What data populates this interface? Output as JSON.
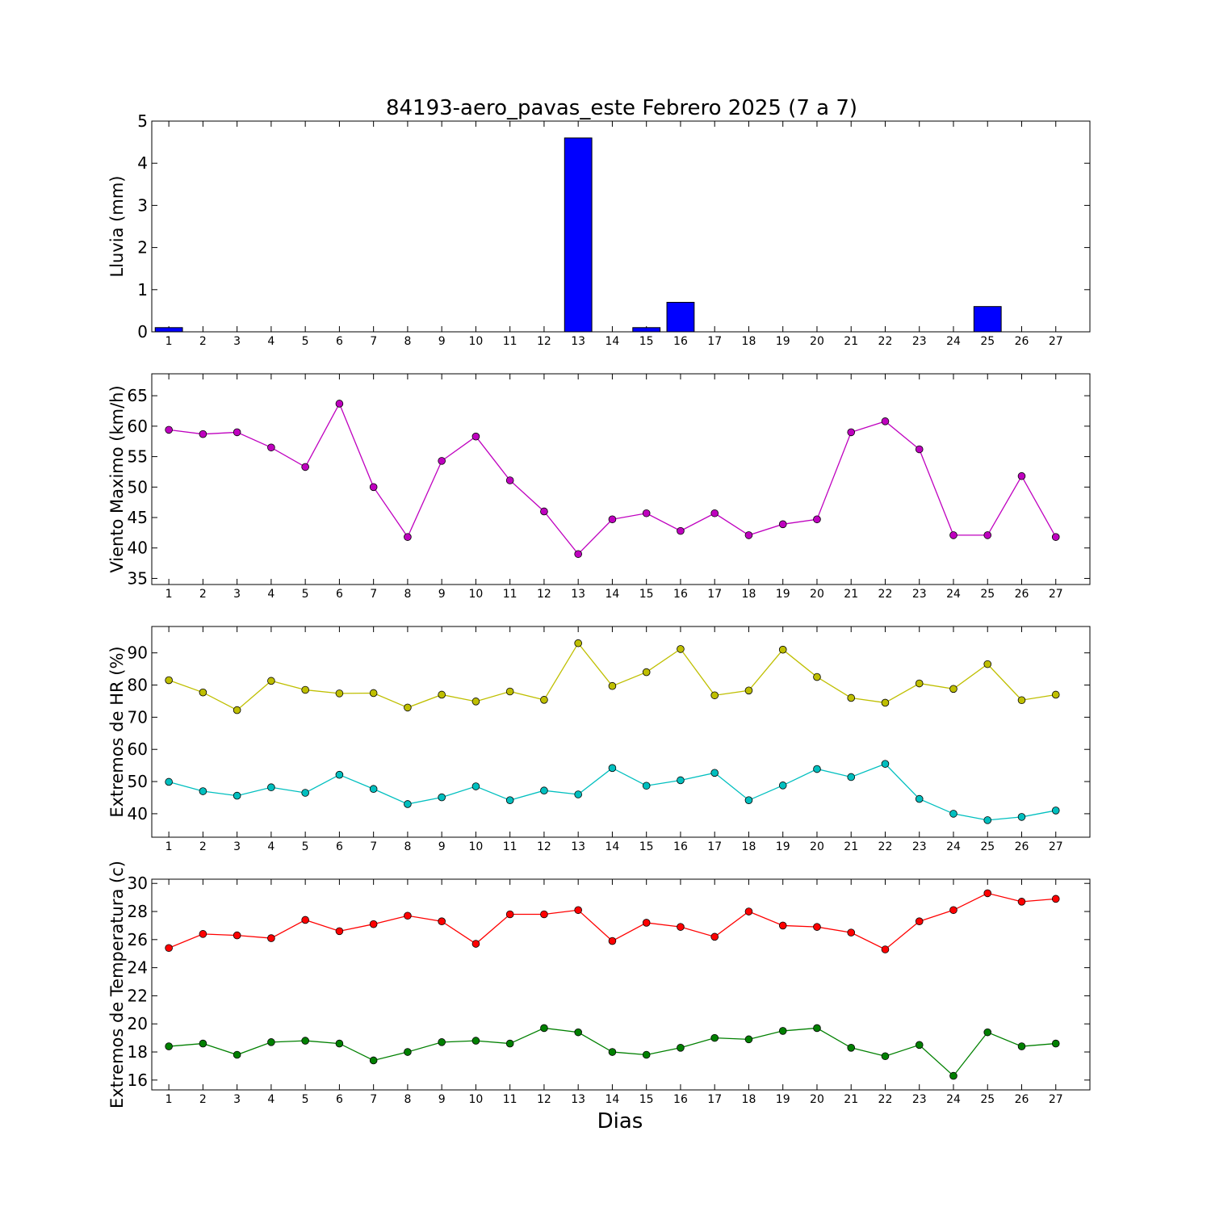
{
  "title": "84193-aero_pavas_este Febrero 2025  (7 a 7)",
  "xlabel": "Dias",
  "colors": {
    "lluvia_bar": "#0000ff",
    "viento": "#bf00bf",
    "hr_max": "#bfbf00",
    "hr_min": "#00bfbf",
    "temp_max": "#ff0000",
    "temp_min": "#008000"
  },
  "chart_data": [
    {
      "type": "bar",
      "ylabel": "Lluvia (mm)",
      "categories": [
        "1",
        "2",
        "3",
        "4",
        "5",
        "6",
        "7",
        "8",
        "9",
        "10",
        "11",
        "12",
        "13",
        "14",
        "15",
        "16",
        "17",
        "18",
        "19",
        "20",
        "21",
        "22",
        "23",
        "24",
        "25",
        "26",
        "27"
      ],
      "ylim": [
        0,
        5
      ],
      "yticks": [
        0,
        1,
        2,
        3,
        4,
        5
      ],
      "grid": false,
      "series": [
        {
          "color": "#0000ff",
          "values": [
            0.1,
            0,
            0,
            0,
            0,
            0,
            0,
            0,
            0,
            0,
            0,
            0,
            4.6,
            0,
            0.1,
            0.7,
            0,
            0,
            0,
            0,
            0,
            0,
            0,
            0,
            0.6,
            0,
            0
          ]
        }
      ]
    },
    {
      "type": "line",
      "ylabel": "Viento Maximo (km/h)",
      "categories": [
        "1",
        "2",
        "3",
        "4",
        "5",
        "6",
        "7",
        "8",
        "9",
        "10",
        "11",
        "12",
        "13",
        "14",
        "15",
        "16",
        "17",
        "18",
        "19",
        "20",
        "21",
        "22",
        "23",
        "24",
        "25",
        "26",
        "27"
      ],
      "ylim": [
        34,
        68.6
      ],
      "yticks": [
        35,
        40,
        45,
        50,
        55,
        60,
        65
      ],
      "grid": false,
      "series": [
        {
          "color": "#bf00bf",
          "values": [
            59.4,
            58.7,
            59.0,
            56.5,
            53.3,
            63.7,
            50.0,
            41.8,
            54.3,
            58.3,
            51.1,
            46.0,
            39.0,
            44.7,
            45.7,
            42.8,
            45.7,
            42.1,
            43.9,
            44.7,
            59.0,
            60.8,
            56.2,
            42.1,
            42.1,
            51.8,
            41.8
          ]
        }
      ]
    },
    {
      "type": "line",
      "ylabel": "Extremos de HR (%)",
      "categories": [
        "1",
        "2",
        "3",
        "4",
        "5",
        "6",
        "7",
        "8",
        "9",
        "10",
        "11",
        "12",
        "13",
        "14",
        "15",
        "16",
        "17",
        "18",
        "19",
        "20",
        "21",
        "22",
        "23",
        "24",
        "25",
        "26",
        "27"
      ],
      "ylim": [
        32.7,
        98.2
      ],
      "yticks": [
        40,
        50,
        60,
        70,
        80,
        90
      ],
      "grid": false,
      "series": [
        {
          "color": "#bfbf00",
          "values": [
            81.5,
            77.7,
            72.2,
            81.3,
            78.5,
            77.4,
            77.5,
            73.0,
            77.0,
            74.9,
            78.0,
            75.4,
            93.0,
            79.7,
            84.0,
            91.2,
            76.8,
            78.3,
            91.0,
            82.5,
            76.0,
            74.5,
            80.5,
            78.8,
            86.5,
            75.3,
            77.0
          ]
        },
        {
          "color": "#00bfbf",
          "values": [
            49.9,
            47.0,
            45.6,
            48.2,
            46.5,
            52.1,
            47.7,
            43.0,
            45.1,
            48.5,
            44.2,
            47.2,
            46.0,
            54.2,
            48.7,
            50.4,
            52.7,
            44.2,
            48.8,
            53.9,
            51.4,
            55.5,
            44.6,
            40.0,
            38.0,
            39.0,
            41.0
          ]
        }
      ]
    },
    {
      "type": "line",
      "ylabel": "Extremos de Temperatura (c)",
      "categories": [
        "1",
        "2",
        "3",
        "4",
        "5",
        "6",
        "7",
        "8",
        "9",
        "10",
        "11",
        "12",
        "13",
        "14",
        "15",
        "16",
        "17",
        "18",
        "19",
        "20",
        "21",
        "22",
        "23",
        "24",
        "25",
        "26",
        "27"
      ],
      "ylim": [
        15.3,
        30.3
      ],
      "yticks": [
        16,
        18,
        20,
        22,
        24,
        26,
        28,
        30
      ],
      "grid": false,
      "series": [
        {
          "color": "#ff0000",
          "values": [
            25.4,
            26.4,
            26.3,
            26.1,
            27.4,
            26.6,
            27.1,
            27.7,
            27.3,
            25.7,
            27.8,
            27.8,
            28.1,
            25.9,
            27.2,
            26.9,
            26.2,
            28.0,
            27.0,
            26.9,
            26.5,
            25.3,
            27.3,
            28.1,
            29.3,
            28.7,
            28.9
          ]
        },
        {
          "color": "#008000",
          "values": [
            18.4,
            18.6,
            17.8,
            18.7,
            18.8,
            18.6,
            17.4,
            18.0,
            18.7,
            18.8,
            18.6,
            19.7,
            19.4,
            18.0,
            17.8,
            18.3,
            19.0,
            18.9,
            19.5,
            19.7,
            18.3,
            17.7,
            18.5,
            16.3,
            19.4,
            18.4,
            18.6
          ]
        }
      ]
    }
  ]
}
